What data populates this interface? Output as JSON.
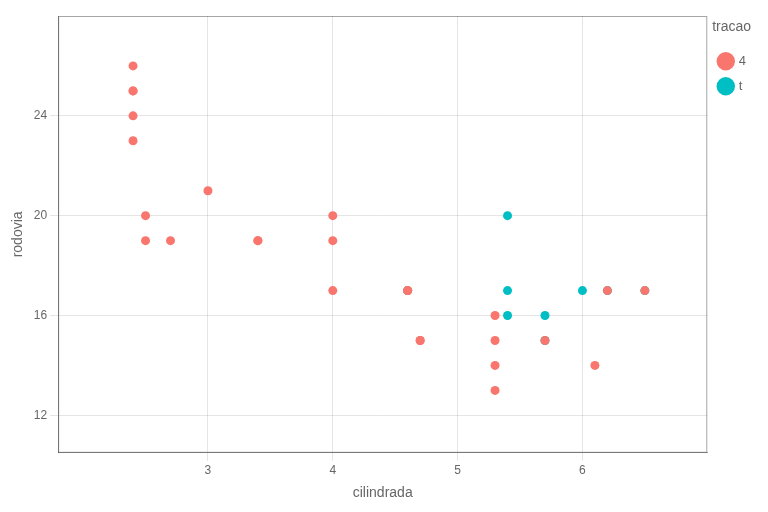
{
  "chart_data": {
    "type": "scatter",
    "xlabel": "cilindrada",
    "ylabel": "rodovia",
    "legend_title": "tracao",
    "series": [
      {
        "name": "4",
        "color": "#F8766D",
        "x": [
          2.4,
          2.4,
          2.4,
          2.4,
          2.4,
          2.5,
          2.5,
          3.0,
          2.7,
          3.4,
          3.4,
          4.0,
          4.0,
          4.0,
          4.6,
          4.6,
          4.6,
          4.7,
          4.7,
          5.3,
          5.3,
          5.3,
          5.3,
          5.7,
          6.1,
          6.2,
          6.5
        ],
        "values": [
          26,
          25,
          25,
          24,
          23,
          20,
          19,
          21,
          19,
          19,
          19,
          20,
          19,
          17,
          17,
          17,
          17,
          15,
          15,
          14,
          13,
          15,
          16,
          15,
          14,
          17,
          17
        ]
      },
      {
        "name": "t",
        "color": "#00BFC4",
        "x": [
          4.6,
          4.6,
          5.4,
          5.4,
          5.4,
          5.7,
          5.7,
          6.0,
          6.2,
          6.5
        ],
        "values": [
          17,
          17,
          20,
          17,
          16,
          16,
          15,
          17,
          17,
          17
        ]
      }
    ],
    "xlim": [
      1.8,
      7.0
    ],
    "ylim": [
      10.5,
      28
    ],
    "xticks": [
      3,
      4,
      5,
      6
    ],
    "yticks": [
      12,
      16,
      20,
      24
    ],
    "grid": true,
    "legend": "right"
  }
}
